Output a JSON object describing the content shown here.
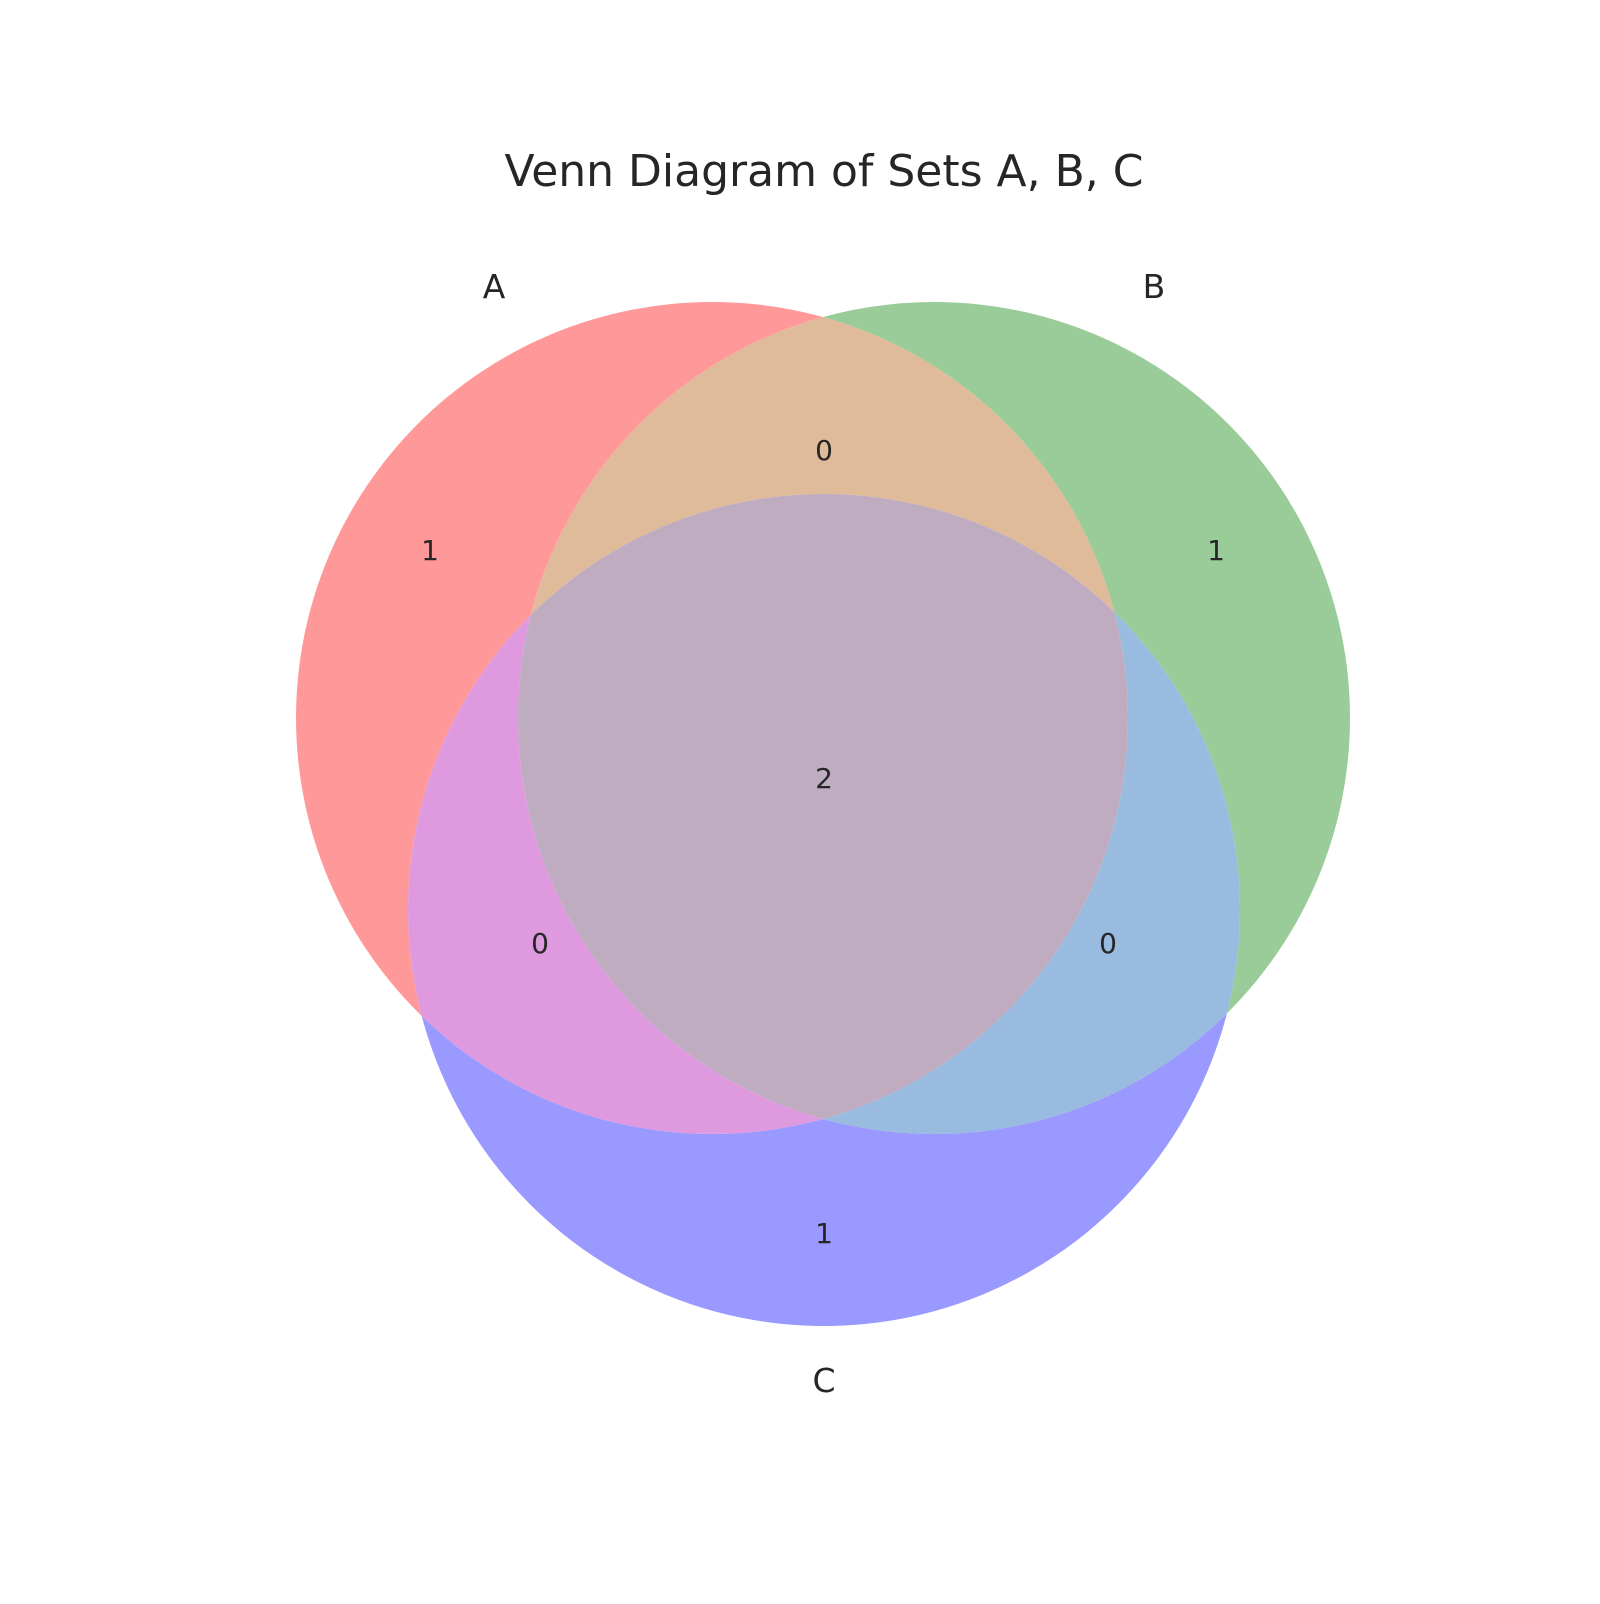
{
  "title": "Venn Diagram of Sets A, B, C",
  "sets": [
    {
      "id": "A",
      "label": "A",
      "color": "#ff9999"
    },
    {
      "id": "B",
      "label": "B",
      "color": "#99cc99"
    },
    {
      "id": "C",
      "label": "C",
      "color": "#9999ff"
    }
  ],
  "region_colors": {
    "A_only": "#ff9999",
    "B_only": "#99cc99",
    "C_only": "#9999ff",
    "AB_only": "#dfbb99",
    "AC_only": "#df99df",
    "BC_only": "#99bbdf",
    "ABC": "#bfacc1"
  },
  "region_counts": {
    "A_only": "1",
    "B_only": "1",
    "C_only": "1",
    "AB_only": "0",
    "AC_only": "0",
    "BC_only": "0",
    "ABC": "2"
  }
}
